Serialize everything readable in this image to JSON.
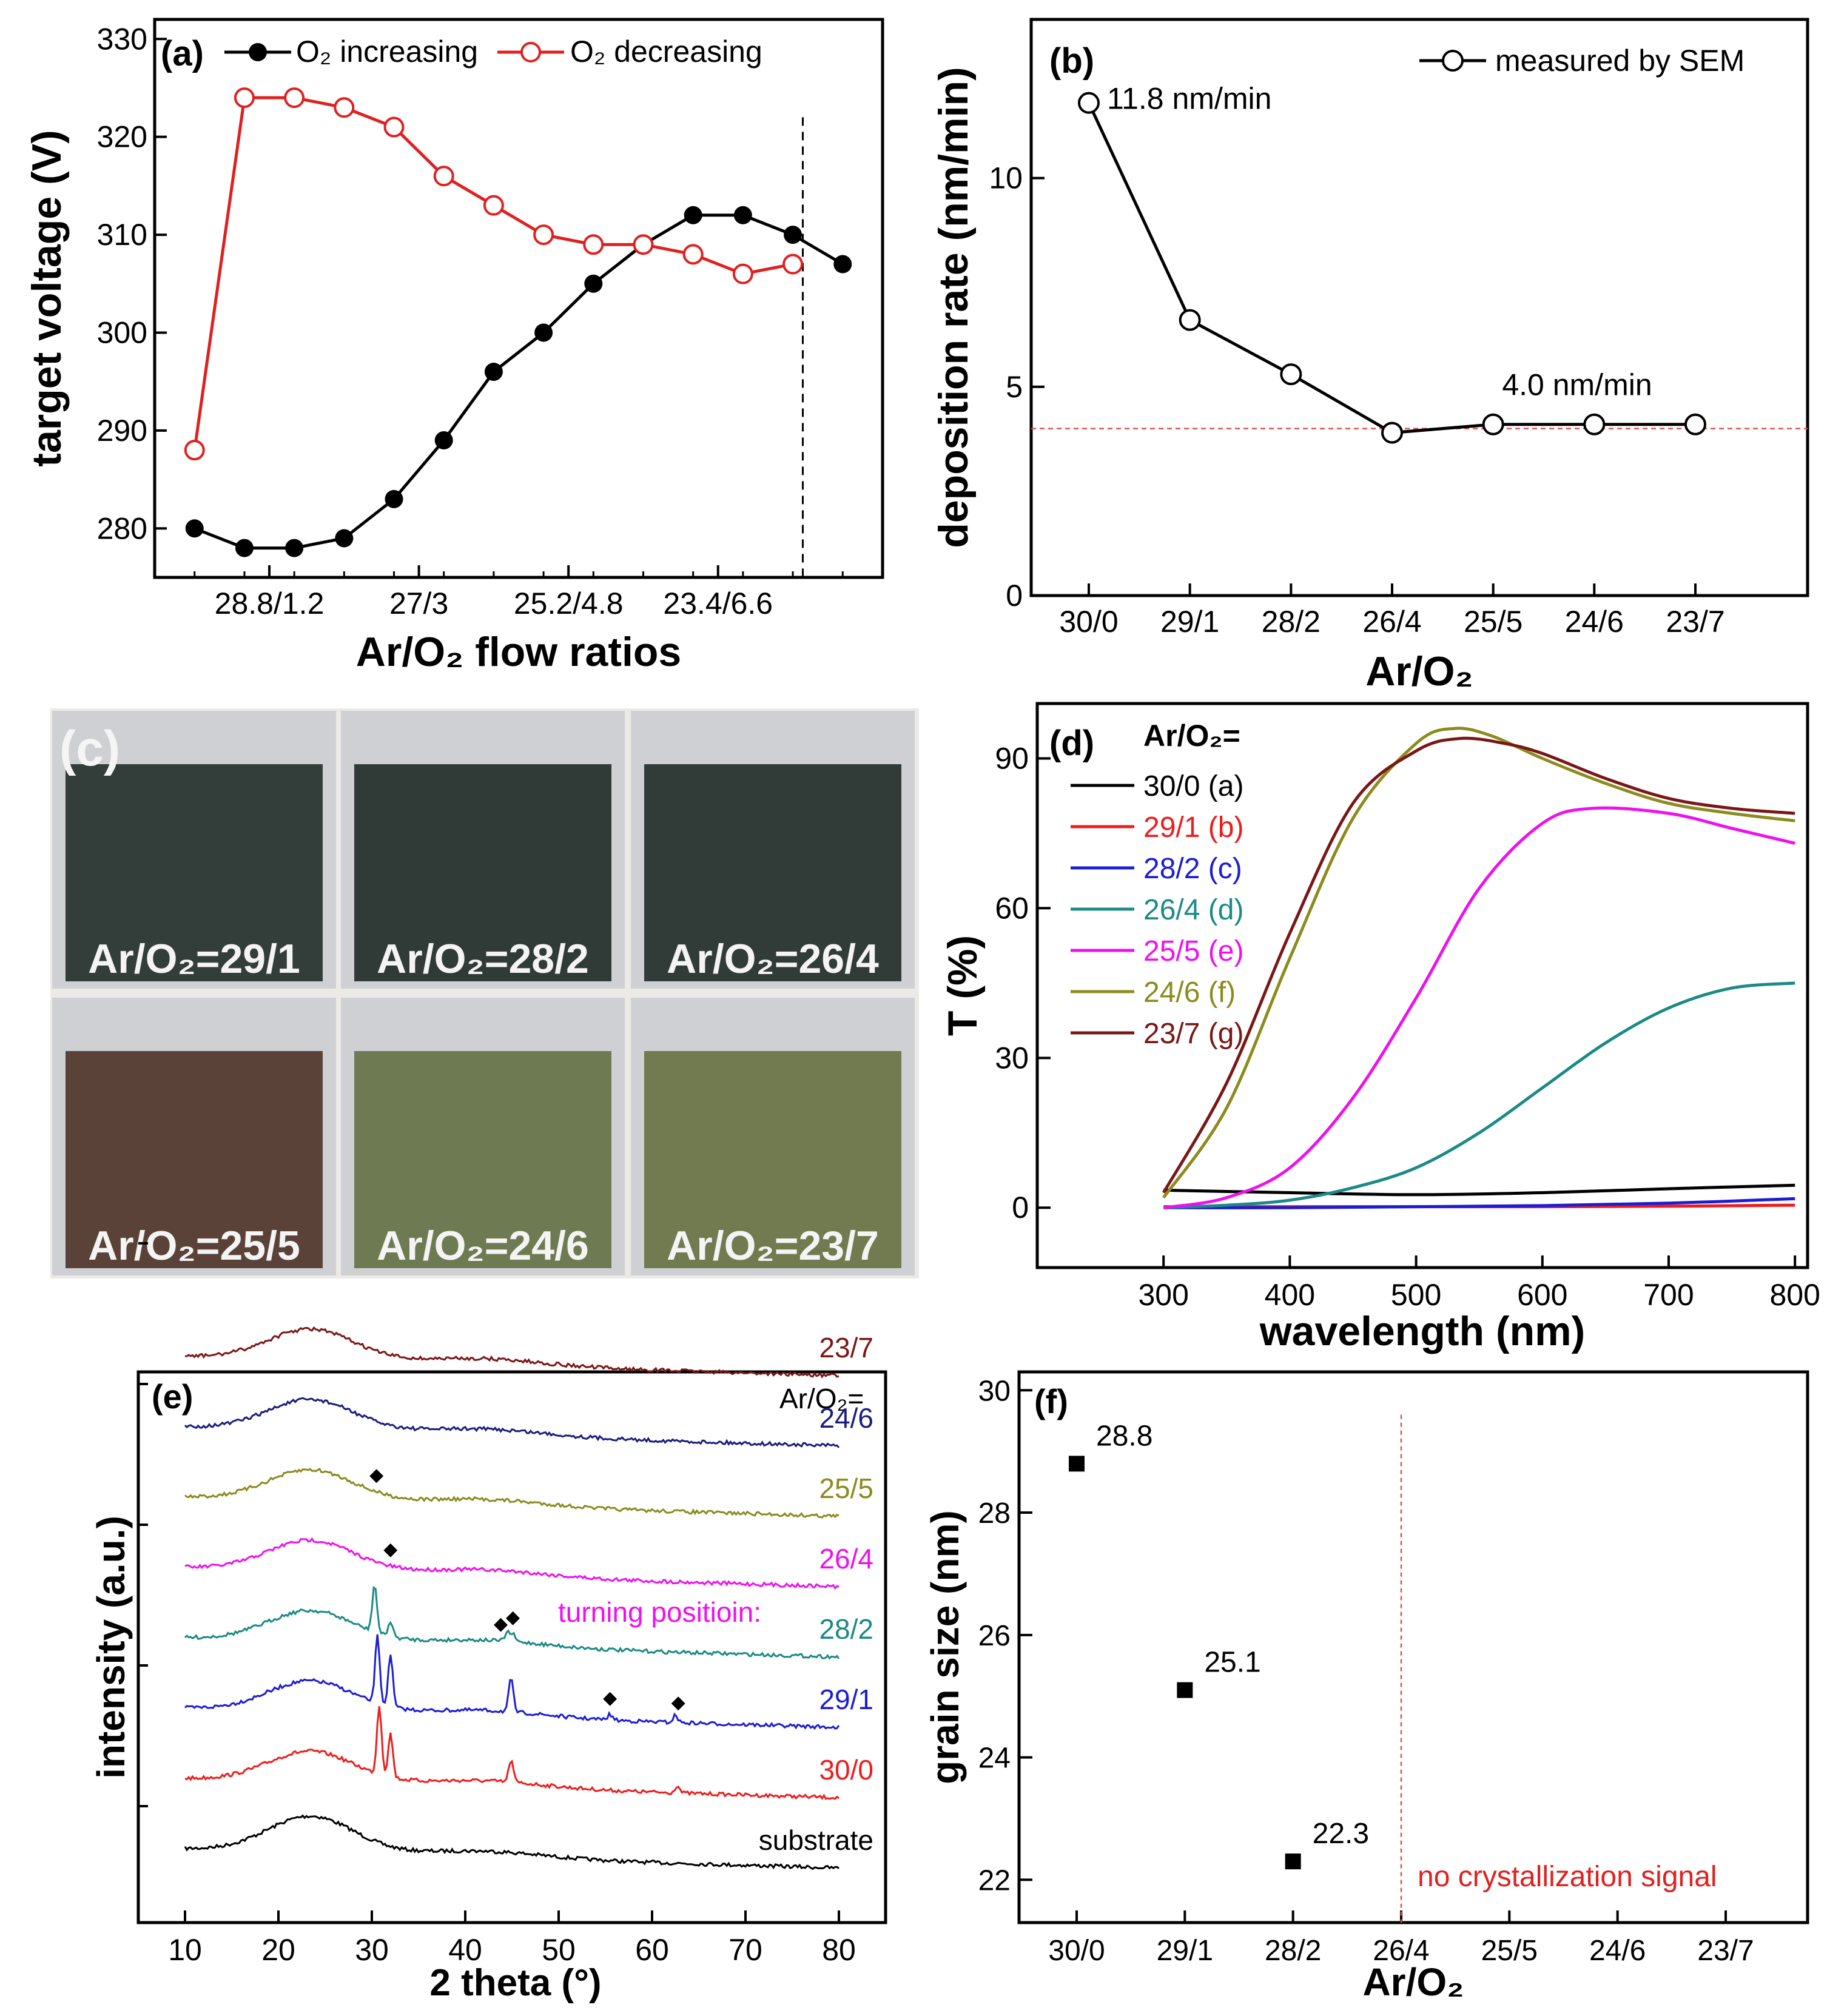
{
  "figure_caption": "",
  "photos": {
    "label": "(c)",
    "tiles": [
      {
        "label": "Ar/O₂=29/1",
        "color": "#333d39"
      },
      {
        "label": "Ar/O₂=28/2",
        "color": "#303a37"
      },
      {
        "label": "Ar/O₂=26/4",
        "color": "#313c39"
      },
      {
        "label": "Ar/O₂=25/5",
        "color": "#5a4238"
      },
      {
        "label": "Ar/O₂=24/6",
        "color": "#6e7b52"
      },
      {
        "label": "Ar/O₂=23/7",
        "color": "#727a50"
      }
    ]
  },
  "chart_data": [
    {
      "id": "a",
      "type": "line",
      "panel_label": "(a)",
      "xlabel": "Ar/O₂ flow ratios",
      "ylabel": "target voltage (V)",
      "x": [
        1,
        2,
        3,
        4,
        5,
        6,
        7,
        8,
        9,
        10,
        11,
        12,
        13,
        14
      ],
      "xlim": [
        0.2,
        14.8
      ],
      "ylim": [
        275,
        332
      ],
      "x_ticks": [
        {
          "x": 2.5,
          "label": "28.8/1.2"
        },
        {
          "x": 5.5,
          "label": "27/3"
        },
        {
          "x": 8.5,
          "label": "25.2/4.8"
        },
        {
          "x": 11.5,
          "label": "23.4/6.6"
        }
      ],
      "y_ticks": [
        280,
        290,
        300,
        310,
        320,
        330
      ],
      "dashed_vline_x": 13.2,
      "series": [
        {
          "name": "O₂ increasing",
          "color": "#000000",
          "marker": "filled-circle",
          "x": [
            1,
            2,
            3,
            4,
            5,
            6,
            7,
            8,
            9,
            10,
            11,
            12,
            13,
            14
          ],
          "values": [
            280,
            278,
            278,
            279,
            283,
            289,
            296,
            300,
            305,
            309,
            312,
            312,
            310,
            307
          ]
        },
        {
          "name": "O₂ decreasing",
          "color": "#e02020",
          "marker": "open-circle",
          "x": [
            1,
            2,
            3,
            4,
            5,
            6,
            7,
            8,
            9,
            10,
            11,
            12,
            13
          ],
          "values": [
            288,
            324,
            324,
            323,
            321,
            316,
            313,
            310,
            309,
            309,
            308,
            306,
            307
          ]
        }
      ]
    },
    {
      "id": "b",
      "type": "line",
      "panel_label": "(b)",
      "xlabel": "Ar/O₂",
      "ylabel": "deposition rate (nm/min)",
      "categories": [
        "30/0",
        "29/1",
        "28/2",
        "26/4",
        "25/5",
        "24/6",
        "23/7"
      ],
      "ylim": [
        0,
        13.8
      ],
      "y_ticks": [
        0,
        5,
        10
      ],
      "series": [
        {
          "name": "measured by SEM",
          "color": "#000000",
          "marker": "open-circle",
          "values": [
            11.8,
            6.6,
            5.3,
            3.9,
            4.1,
            4.1,
            4.1
          ]
        }
      ],
      "reference_line": {
        "y": 4.0,
        "color": "#e05050",
        "style": "dashed"
      },
      "annotations": [
        {
          "text": "11.8 nm/min",
          "x_index": 0,
          "y": 11.8
        },
        {
          "text": "4.0 nm/min",
          "x_index": 5,
          "y": 4.0
        }
      ]
    },
    {
      "id": "d",
      "type": "line",
      "panel_label": "(d)",
      "xlabel": "wavelength (nm)",
      "ylabel": "T (%)",
      "legend_title": "Ar/O₂=",
      "xlim": [
        200,
        810
      ],
      "ylim": [
        -12,
        101
      ],
      "x_ticks": [
        300,
        400,
        500,
        600,
        700,
        800
      ],
      "y_ticks": [
        0,
        30,
        60,
        90
      ],
      "series": [
        {
          "name": "30/0 (a)",
          "color": "#000000",
          "x": [
            300,
            400,
            500,
            600,
            700,
            800
          ],
          "values": [
            3.5,
            3.0,
            2.6,
            3.0,
            3.8,
            4.5
          ]
        },
        {
          "name": "29/1 (b)",
          "color": "#ee1c1c",
          "x": [
            300,
            400,
            500,
            600,
            700,
            800
          ],
          "values": [
            0.2,
            0.2,
            0.2,
            0.2,
            0.3,
            0.5
          ]
        },
        {
          "name": "28/2 (c)",
          "color": "#1c1cd8",
          "x": [
            300,
            400,
            500,
            600,
            700,
            800
          ],
          "values": [
            0,
            0,
            0.2,
            0.4,
            0.9,
            1.8
          ]
        },
        {
          "name": "26/4 (d)",
          "color": "#1b8a86",
          "x": [
            300,
            350,
            400,
            450,
            500,
            550,
            600,
            650,
            700,
            750,
            800
          ],
          "values": [
            0,
            0.5,
            1.5,
            4,
            8,
            15,
            24,
            33,
            40,
            44,
            45
          ]
        },
        {
          "name": "25/5 (e)",
          "color": "#ee10ee",
          "x": [
            300,
            350,
            400,
            450,
            500,
            550,
            600,
            640,
            700,
            750,
            800
          ],
          "values": [
            0,
            2,
            8,
            22,
            42,
            64,
            77,
            80,
            79,
            76,
            73
          ]
        },
        {
          "name": "24/6 (f)",
          "color": "#8b8b1e",
          "x": [
            300,
            350,
            400,
            450,
            500,
            530,
            560,
            600,
            650,
            700,
            750,
            800
          ],
          "values": [
            2,
            20,
            50,
            78,
            93,
            96,
            94.5,
            90,
            85,
            81,
            79,
            77.5
          ]
        },
        {
          "name": "23/7 (g)",
          "color": "#7a1616",
          "x": [
            300,
            350,
            400,
            450,
            500,
            535,
            570,
            600,
            650,
            700,
            750,
            800
          ],
          "values": [
            3,
            25,
            55,
            81,
            91.5,
            94,
            93,
            91,
            86,
            82,
            80,
            79
          ]
        }
      ]
    },
    {
      "id": "e",
      "type": "line",
      "panel_label": "(e)",
      "xlabel": "2 theta (°)",
      "ylabel": "intensity (a.u.)",
      "legend_title": "Ar/O₂=",
      "xlim": [
        5,
        85
      ],
      "x_ticks": [
        10,
        20,
        30,
        40,
        50,
        60,
        70,
        80
      ],
      "annotation_turning": "turning positioin:",
      "peak_marker": "◆",
      "series": [
        {
          "name": "substrate",
          "color": "#000000",
          "offset": 0,
          "hump": 1.0,
          "peaks": []
        },
        {
          "name": "30/0",
          "color": "#ee1c1c",
          "offset": 1,
          "hump": 0.85,
          "peaks": [
            [
              30.8,
              1.9
            ],
            [
              32.0,
              1.2
            ],
            [
              44.9,
              0.6
            ],
            [
              62.7,
              0.2
            ]
          ]
        },
        {
          "name": "29/1",
          "color": "#1c1cd8",
          "offset": 2,
          "hump": 0.85,
          "peaks": [
            [
              30.6,
              1.85
            ],
            [
              32.0,
              1.4
            ],
            [
              44.9,
              0.9
            ],
            [
              55.5,
              0.15
            ],
            [
              62.5,
              0.2
            ]
          ]
        },
        {
          "name": "28/2",
          "color": "#1b8a86",
          "offset": 3,
          "hump": 0.85,
          "peaks": [
            [
              30.3,
              1.3
            ],
            [
              32.0,
              0.4
            ],
            [
              44.5,
              0.25
            ],
            [
              45.1,
              0.2
            ]
          ]
        },
        {
          "name": "26/4",
          "color": "#ee10ee",
          "offset": 4,
          "hump": 0.85,
          "peaks": []
        },
        {
          "name": "25/5",
          "color": "#8b8b1e",
          "offset": 5,
          "hump": 0.85,
          "peaks": []
        },
        {
          "name": "24/6",
          "color": "#1c1c80",
          "offset": 6,
          "hump": 0.85,
          "peaks": []
        },
        {
          "name": "23/7",
          "color": "#7a1616",
          "offset": 7,
          "hump": 0.85,
          "peaks": []
        }
      ],
      "peak_markers": [
        {
          "x": 30.5,
          "series_index": 5
        },
        {
          "x": 32.0,
          "series_index": 4
        },
        {
          "x": 43.8,
          "series_index": 3
        },
        {
          "x": 45.1,
          "series_index": 3
        },
        {
          "x": 55.5,
          "series_index": 2
        },
        {
          "x": 62.8,
          "series_index": 2
        }
      ]
    },
    {
      "id": "f",
      "type": "scatter",
      "panel_label": "(f)",
      "xlabel": "Ar/O₂",
      "ylabel": "grain size (nm)",
      "categories": [
        "30/0",
        "29/1",
        "28/2",
        "26/4",
        "25/5",
        "24/6",
        "23/7"
      ],
      "ylim": [
        21.3,
        30.3
      ],
      "y_ticks": [
        22,
        24,
        26,
        28,
        30
      ],
      "series": [
        {
          "name": "grain size",
          "color": "#000000",
          "marker": "square",
          "x_index": [
            0,
            1,
            2
          ],
          "values": [
            28.8,
            25.1,
            22.3
          ]
        }
      ],
      "point_labels": [
        "28.8",
        "25.1",
        "22.3"
      ],
      "reference_vline_index": 3,
      "annotation_no_crystal": "no crystallization signal"
    }
  ]
}
